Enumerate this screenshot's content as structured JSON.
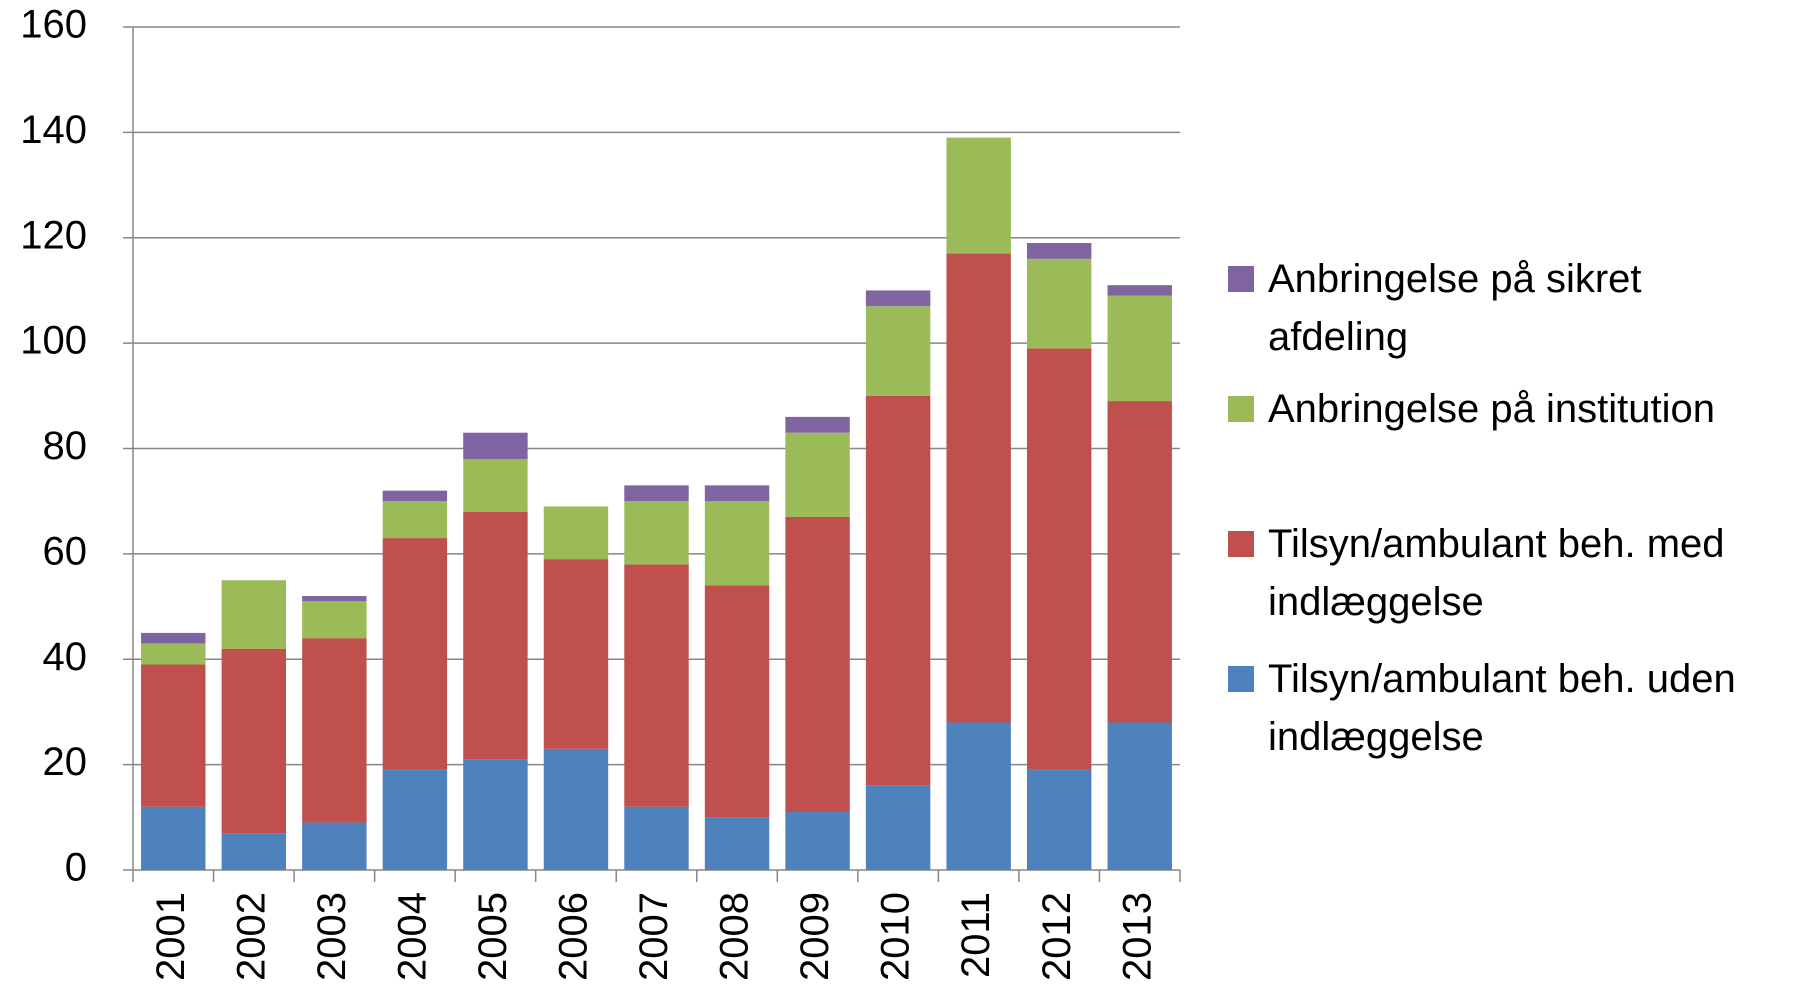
{
  "chart_data": {
    "type": "stacked_bar",
    "categories": [
      "2001",
      "2002",
      "2003",
      "2004",
      "2005",
      "2006",
      "2007",
      "2008",
      "2009",
      "2010",
      "2011",
      "2012",
      "2013"
    ],
    "series": [
      {
        "name": "Tilsyn/ambulant beh. uden indlæggelse",
        "color": "#4f81bd",
        "values": [
          12,
          7,
          9,
          19,
          21,
          23,
          12,
          10,
          11,
          16,
          28,
          19,
          28
        ]
      },
      {
        "name": "Tilsyn/ambulant beh. med indlæggelse",
        "color": "#c0504d",
        "values": [
          27,
          35,
          35,
          44,
          47,
          36,
          46,
          44,
          56,
          74,
          89,
          80,
          61
        ]
      },
      {
        "name": "Anbringelse på institution",
        "color": "#9bbb59",
        "values": [
          4,
          13,
          7,
          7,
          10,
          10,
          12,
          16,
          16,
          17,
          22,
          17,
          20
        ]
      },
      {
        "name": "Anbringelse på sikret afdeling",
        "color": "#8064a2",
        "values": [
          2,
          0,
          1,
          2,
          5,
          0,
          3,
          3,
          3,
          3,
          0,
          3,
          2
        ]
      }
    ],
    "ylim": [
      0,
      160
    ],
    "yticks": [
      0,
      20,
      40,
      60,
      80,
      100,
      120,
      140,
      160
    ],
    "grid": true,
    "legend": "right"
  }
}
